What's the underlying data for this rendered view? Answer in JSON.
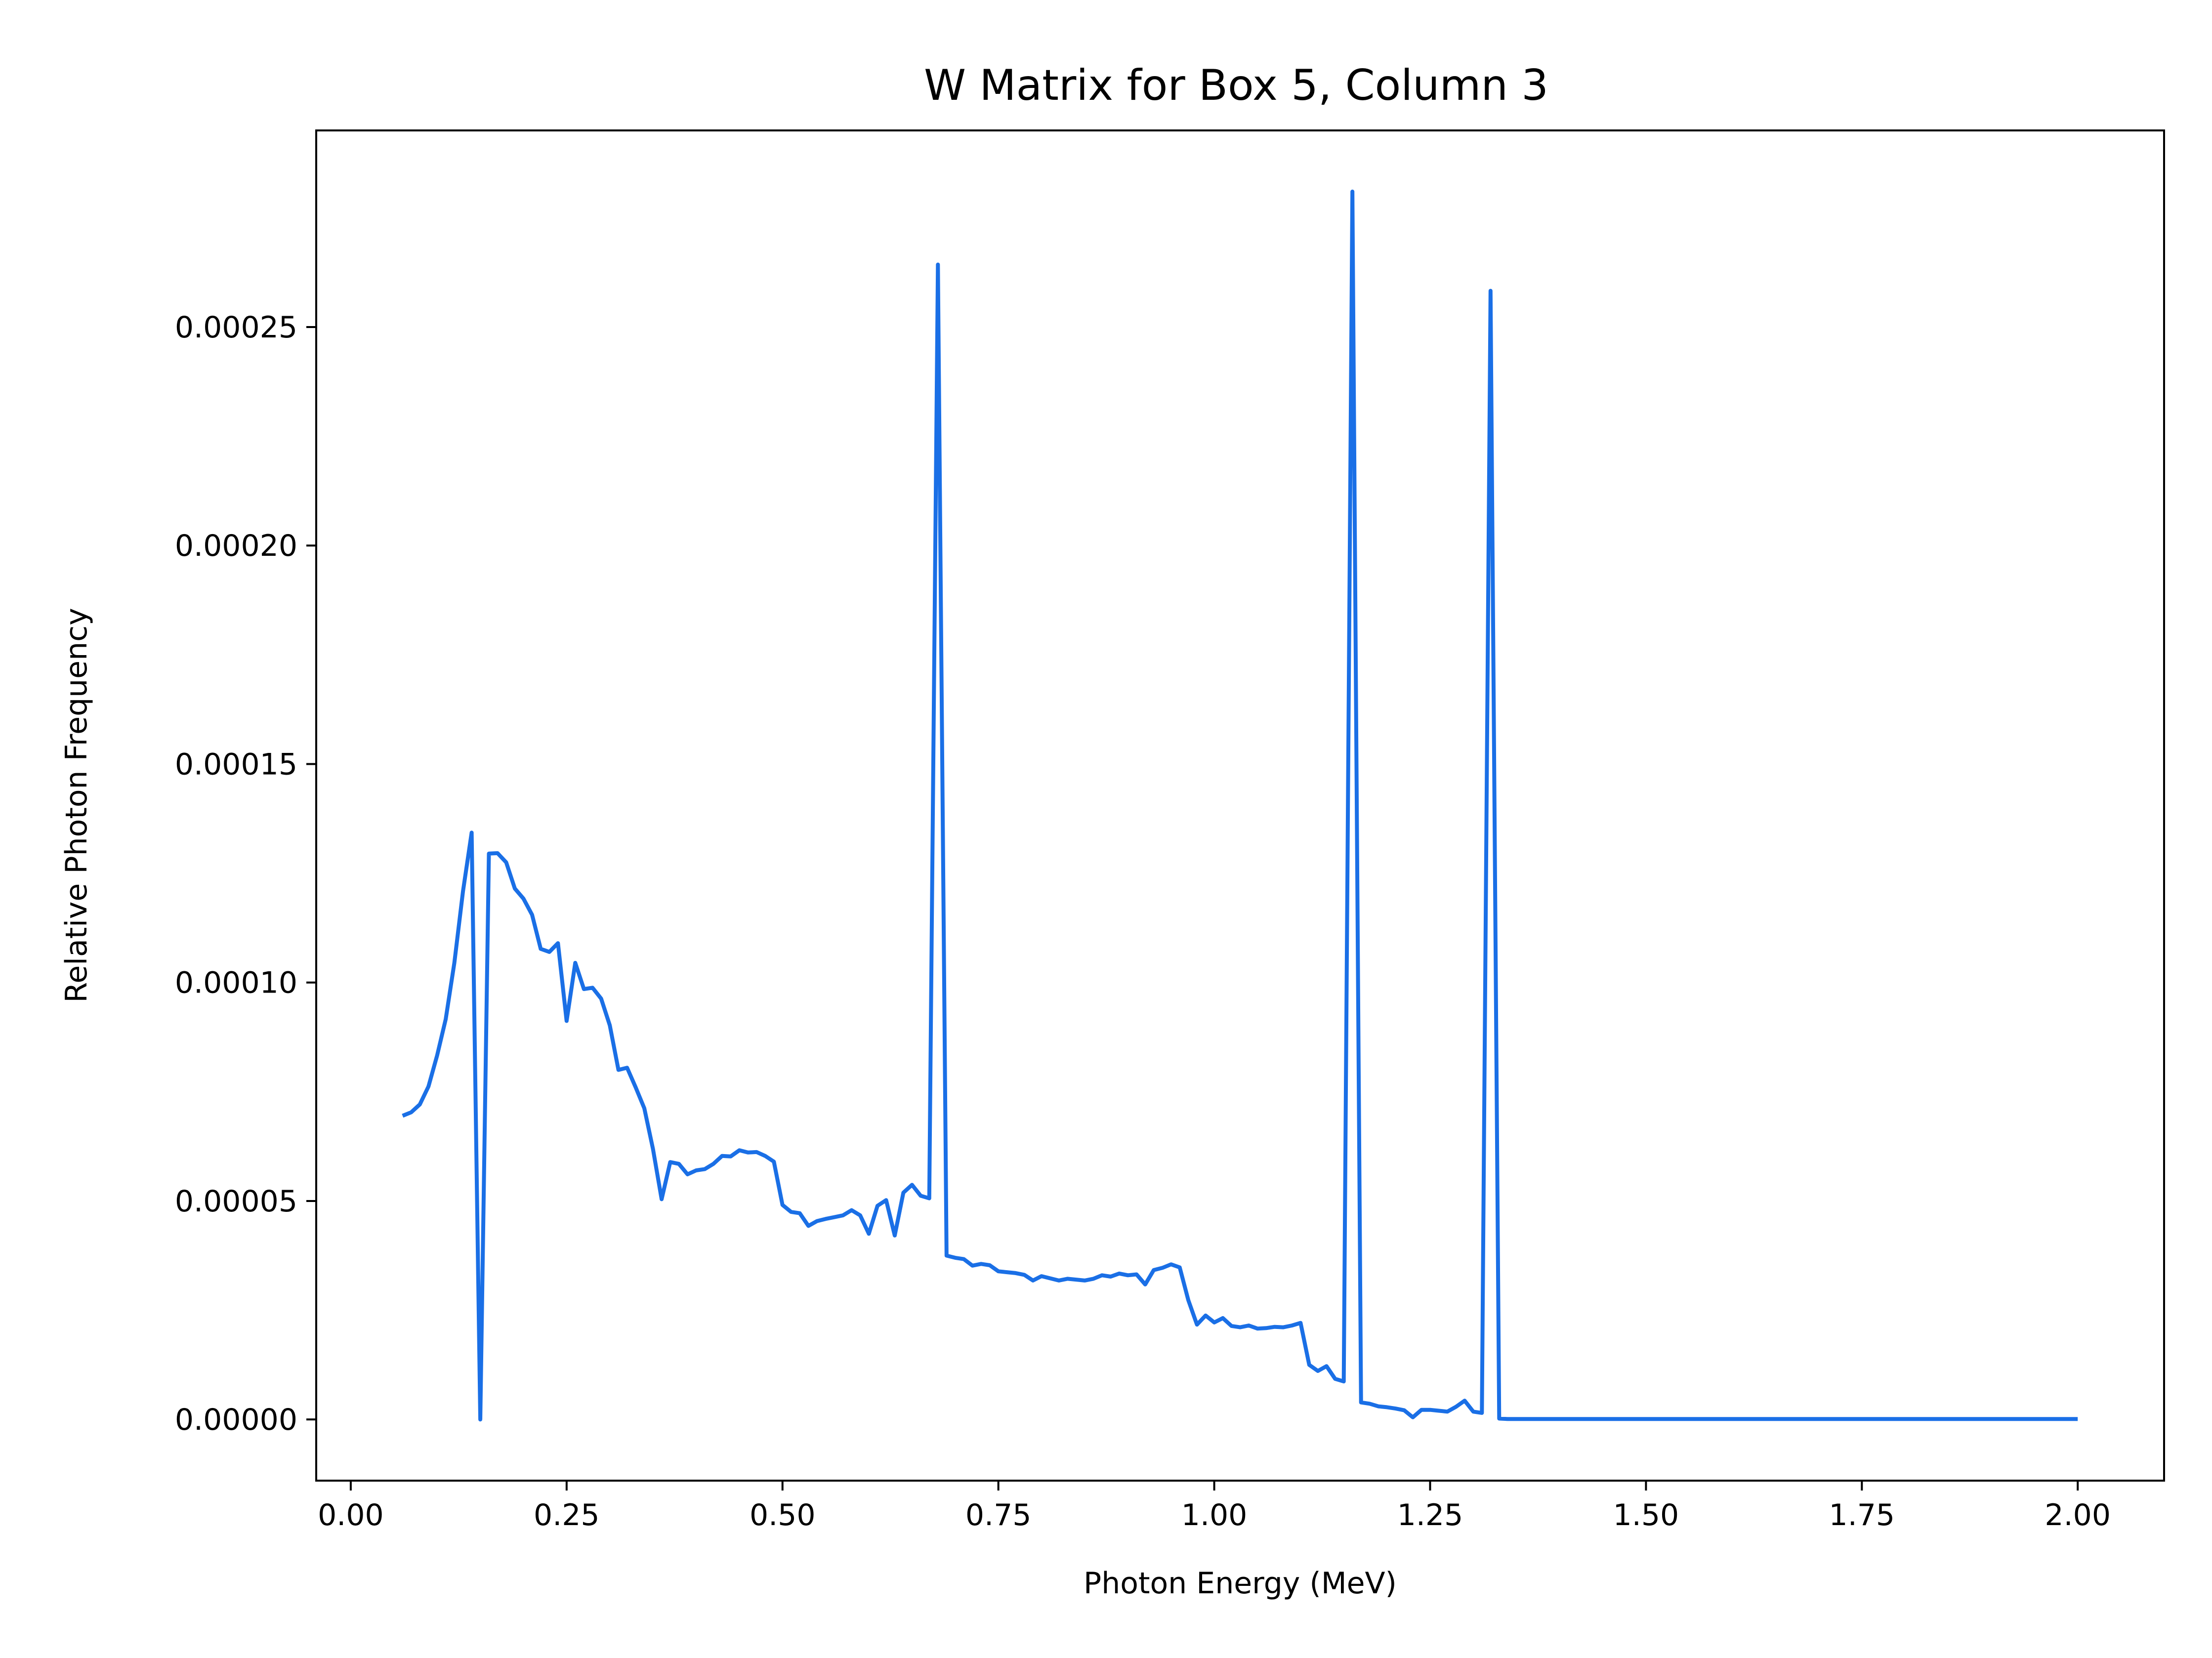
{
  "chart_data": {
    "type": "line",
    "title": "W Matrix for Box 5, Column 3",
    "xlabel": "Photon Energy (MeV)",
    "ylabel": "Relative Photon Frequency",
    "xlim": [
      -0.04,
      2.1
    ],
    "ylim": [
      -1.4e-05,
      0.000295
    ],
    "x_ticks": [
      0.0,
      0.25,
      0.5,
      0.75,
      1.0,
      1.25,
      1.5,
      1.75,
      2.0
    ],
    "x_tick_labels": [
      "0.00",
      "0.25",
      "0.50",
      "0.75",
      "1.00",
      "1.25",
      "1.50",
      "1.75",
      "2.00"
    ],
    "y_ticks": [
      0.0,
      5e-05,
      0.0001,
      0.00015,
      0.0002,
      0.00025
    ],
    "y_tick_labels": [
      "0.00000",
      "0.00005",
      "0.00010",
      "0.00015",
      "0.00020",
      "0.00025"
    ],
    "grid": false,
    "legend": "none",
    "line_color": "#1a6fe6",
    "series": [
      {
        "x": [
          0.06,
          0.07,
          0.08,
          0.09,
          0.1,
          0.11,
          0.12,
          0.13,
          0.14,
          0.15,
          0.16,
          0.17,
          0.18,
          0.19,
          0.2,
          0.21,
          0.22,
          0.23,
          0.24,
          0.25,
          0.26,
          0.27,
          0.28,
          0.29,
          0.3,
          0.31,
          0.32,
          0.33,
          0.34,
          0.35,
          0.36,
          0.37,
          0.38,
          0.39,
          0.4,
          0.41,
          0.42,
          0.43,
          0.44,
          0.45,
          0.46,
          0.47,
          0.48,
          0.49,
          0.5,
          0.51,
          0.52,
          0.53,
          0.54,
          0.55,
          0.56,
          0.57,
          0.58,
          0.59,
          0.6,
          0.61,
          0.62,
          0.63,
          0.64,
          0.65,
          0.66,
          0.67,
          0.68,
          0.69,
          0.7,
          0.71,
          0.72,
          0.73,
          0.74,
          0.75,
          0.76,
          0.77,
          0.78,
          0.79,
          0.8,
          0.81,
          0.82,
          0.83,
          0.84,
          0.85,
          0.86,
          0.87,
          0.88,
          0.89,
          0.9,
          0.91,
          0.92,
          0.93,
          0.94,
          0.95,
          0.96,
          0.97,
          0.98,
          0.99,
          1.0,
          1.01,
          1.02,
          1.03,
          1.04,
          1.05,
          1.06,
          1.07,
          1.08,
          1.09,
          1.1,
          1.11,
          1.12,
          1.13,
          1.14,
          1.15,
          1.16,
          1.17,
          1.18,
          1.19,
          1.2,
          1.21,
          1.22,
          1.23,
          1.24,
          1.25,
          1.26,
          1.27,
          1.28,
          1.29,
          1.3,
          1.31,
          1.32,
          1.33,
          1.34,
          1.35,
          2.0
        ],
        "y": [
          6.95e-05,
          7.03e-05,
          7.21e-05,
          7.62e-05,
          8.33e-05,
          9.16e-05,
          0.0001045,
          0.0001209,
          0.0001343,
          0.0,
          0.0001295,
          0.0001296,
          0.0001275,
          0.0001215,
          0.0001192,
          0.0001155,
          0.0001077,
          0.000107,
          0.000109,
          9.12e-05,
          0.0001045,
          9.85e-05,
          9.88e-05,
          9.63e-05,
          9.02e-05,
          8e-05,
          8.05e-05,
          7.6e-05,
          7.12e-05,
          6.19e-05,
          5.04e-05,
          5.89e-05,
          5.85e-05,
          5.61e-05,
          5.7e-05,
          5.73e-05,
          5.85e-05,
          6.03e-05,
          6.02e-05,
          6.16e-05,
          6.11e-05,
          6.12e-05,
          6.03e-05,
          5.9e-05,
          4.91e-05,
          4.75e-05,
          4.72e-05,
          4.43e-05,
          4.54e-05,
          4.59e-05,
          4.63e-05,
          4.67e-05,
          4.79e-05,
          4.67e-05,
          4.25e-05,
          4.89e-05,
          5.02e-05,
          4.21e-05,
          5.19e-05,
          5.37e-05,
          5.12e-05,
          5.06e-05,
          0.0002643,
          3.75e-05,
          3.7e-05,
          3.67e-05,
          3.52e-05,
          3.56e-05,
          3.53e-05,
          3.39e-05,
          3.37e-05,
          3.35e-05,
          3.31e-05,
          3.18e-05,
          3.28e-05,
          3.23e-05,
          3.18e-05,
          3.22e-05,
          3.2e-05,
          3.18e-05,
          3.22e-05,
          3.3e-05,
          3.27e-05,
          3.34e-05,
          3.3e-05,
          3.32e-05,
          3.09e-05,
          3.42e-05,
          3.47e-05,
          3.55e-05,
          3.48e-05,
          2.73e-05,
          2.17e-05,
          2.38e-05,
          2.22e-05,
          2.32e-05,
          2.14e-05,
          2.11e-05,
          2.15e-05,
          2.08e-05,
          2.09e-05,
          2.12e-05,
          2.11e-05,
          2.15e-05,
          2.21e-05,
          1.25e-05,
          1.11e-05,
          1.22e-05,
          9.3e-06,
          8.7e-06,
          0.000281,
          3.9e-06,
          3.6e-06,
          3e-06,
          2.8e-06,
          2.5e-06,
          2.1e-06,
          5e-07,
          2.2e-06,
          2.2e-06,
          2e-06,
          1.8e-06,
          2.9e-06,
          4.3e-06,
          1.8e-06,
          1.5e-06,
          0.0002583,
          2e-07,
          1e-07,
          1e-07,
          1e-07
        ]
      }
    ]
  }
}
